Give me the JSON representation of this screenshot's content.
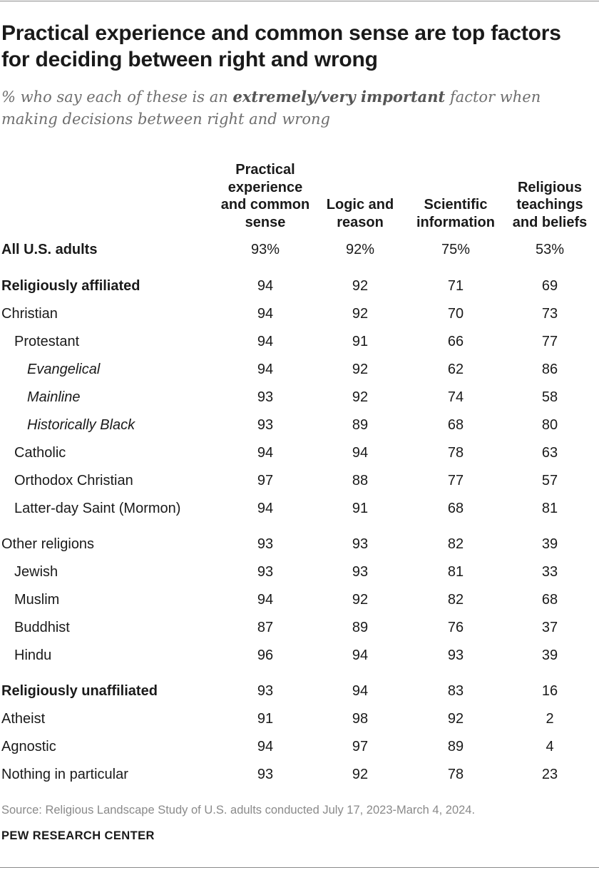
{
  "title": "Practical experience and common sense are top factors for deciding between right and wrong",
  "subtitle": {
    "pre": "% who say each of these is an ",
    "emph": "extremely/very important",
    "post": " factor when making decisions between right and wrong"
  },
  "source": "Source: Religious Landscape Study of U.S. adults conducted July 17, 2023-March 4, 2024.",
  "brand": "PEW RESEARCH CENTER",
  "chart_data": {
    "type": "table",
    "columns": [
      {
        "label": "Practical experience and common sense"
      },
      {
        "label": "Logic and reason"
      },
      {
        "label": "Scientific information"
      },
      {
        "label": "Religious teachings and beliefs"
      }
    ],
    "rows": [
      {
        "label": "All U.S. adults",
        "style": "bold",
        "indent": 0,
        "values": [
          "93%",
          "92%",
          "75%",
          "53%"
        ]
      },
      {
        "label": "Religiously affiliated",
        "style": "bold",
        "indent": 0,
        "values": [
          "94",
          "92",
          "71",
          "69"
        ]
      },
      {
        "label": "Christian",
        "style": "normal",
        "indent": 0,
        "values": [
          "94",
          "92",
          "70",
          "73"
        ]
      },
      {
        "label": "Protestant",
        "style": "normal",
        "indent": 1,
        "values": [
          "94",
          "91",
          "66",
          "77"
        ]
      },
      {
        "label": "Evangelical",
        "style": "italic",
        "indent": 2,
        "values": [
          "94",
          "92",
          "62",
          "86"
        ]
      },
      {
        "label": "Mainline",
        "style": "italic",
        "indent": 2,
        "values": [
          "93",
          "92",
          "74",
          "58"
        ]
      },
      {
        "label": "Historically Black",
        "style": "italic",
        "indent": 2,
        "values": [
          "93",
          "89",
          "68",
          "80"
        ]
      },
      {
        "label": "Catholic",
        "style": "normal",
        "indent": 1,
        "values": [
          "94",
          "94",
          "78",
          "63"
        ]
      },
      {
        "label": "Orthodox Christian",
        "style": "normal",
        "indent": 1,
        "values": [
          "97",
          "88",
          "77",
          "57"
        ]
      },
      {
        "label": "Latter-day Saint (Mormon)",
        "style": "normal",
        "indent": 1,
        "values": [
          "94",
          "91",
          "68",
          "81"
        ]
      },
      {
        "label": "Other religions",
        "style": "normal",
        "indent": 0,
        "values": [
          "93",
          "93",
          "82",
          "39"
        ]
      },
      {
        "label": "Jewish",
        "style": "normal",
        "indent": 1,
        "values": [
          "93",
          "93",
          "81",
          "33"
        ]
      },
      {
        "label": "Muslim",
        "style": "normal",
        "indent": 1,
        "values": [
          "94",
          "92",
          "82",
          "68"
        ]
      },
      {
        "label": "Buddhist",
        "style": "normal",
        "indent": 1,
        "values": [
          "87",
          "89",
          "76",
          "37"
        ]
      },
      {
        "label": "Hindu",
        "style": "normal",
        "indent": 1,
        "values": [
          "96",
          "94",
          "93",
          "39"
        ]
      },
      {
        "label": "Religiously unaffiliated",
        "style": "bold",
        "indent": 0,
        "values": [
          "93",
          "94",
          "83",
          "16"
        ]
      },
      {
        "label": "Atheist",
        "style": "normal",
        "indent": 0,
        "values": [
          "91",
          "98",
          "92",
          "2"
        ]
      },
      {
        "label": "Agnostic",
        "style": "normal",
        "indent": 0,
        "values": [
          "94",
          "97",
          "89",
          "4"
        ]
      },
      {
        "label": "Nothing in particular",
        "style": "normal",
        "indent": 0,
        "values": [
          "93",
          "92",
          "78",
          "23"
        ]
      }
    ]
  }
}
